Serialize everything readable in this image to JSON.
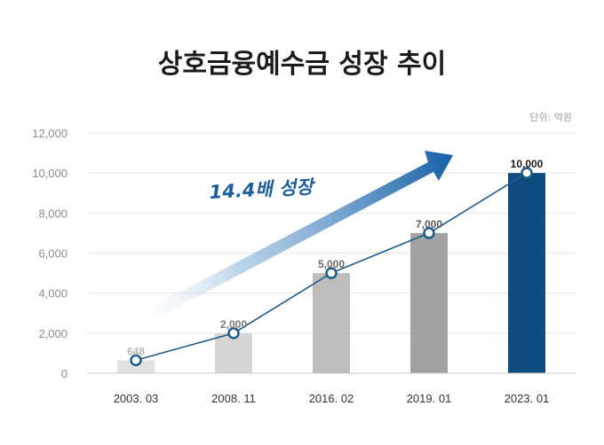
{
  "chart_data": {
    "type": "bar",
    "title": "상호금융예수금 성장 추이",
    "unit_label": "단위: 억원",
    "categories": [
      "2003. 03",
      "2008. 11",
      "2016. 02",
      "2019. 01",
      "2023. 01"
    ],
    "values": [
      648,
      2000,
      5000,
      7000,
      10000
    ],
    "value_labels": [
      "648",
      "2,000",
      "5,000",
      "7,000",
      "10,000"
    ],
    "ylim": [
      0,
      12000
    ],
    "yticks": [
      0,
      2000,
      4000,
      6000,
      8000,
      10000,
      12000
    ],
    "ytick_labels": [
      "0",
      "2,000",
      "4,000",
      "6,000",
      "8,000",
      "10,000",
      "12,000"
    ],
    "bar_colors": [
      "#e2e2e2",
      "#d6d6d6",
      "#bdbdbd",
      "#a3a3a3",
      "#0f4a80"
    ],
    "value_label_colors": [
      "#b8b8b8",
      "#7a7a7a",
      "#6a6a6a",
      "#5a5a5a",
      "#1a1a1a"
    ],
    "line_overlay": true,
    "line_color": "#1f5c8a",
    "grid": true,
    "annotation": "14.4배 성장"
  }
}
